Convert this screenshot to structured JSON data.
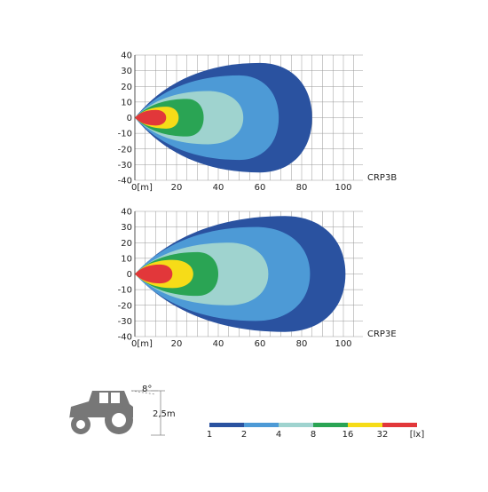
{
  "plots": [
    {
      "label": "CRP3B",
      "yticks": [
        "40",
        "30",
        "20",
        "10",
        "0",
        "-10",
        "-20",
        "-30",
        "-40"
      ],
      "xticks": [
        "0[m]",
        "20",
        "40",
        "60",
        "80",
        "100"
      ]
    },
    {
      "label": "CRP3E",
      "yticks": [
        "40",
        "30",
        "20",
        "10",
        "0",
        "-10",
        "-20",
        "-30",
        "-40"
      ],
      "xticks": [
        "0[m]",
        "20",
        "40",
        "60",
        "80",
        "100"
      ]
    }
  ],
  "legend": {
    "labels": [
      "1",
      "2",
      "4",
      "8",
      "16",
      "32"
    ],
    "unit": "[lx]"
  },
  "tractor": {
    "angle": "8°",
    "height": "2,5m"
  }
}
